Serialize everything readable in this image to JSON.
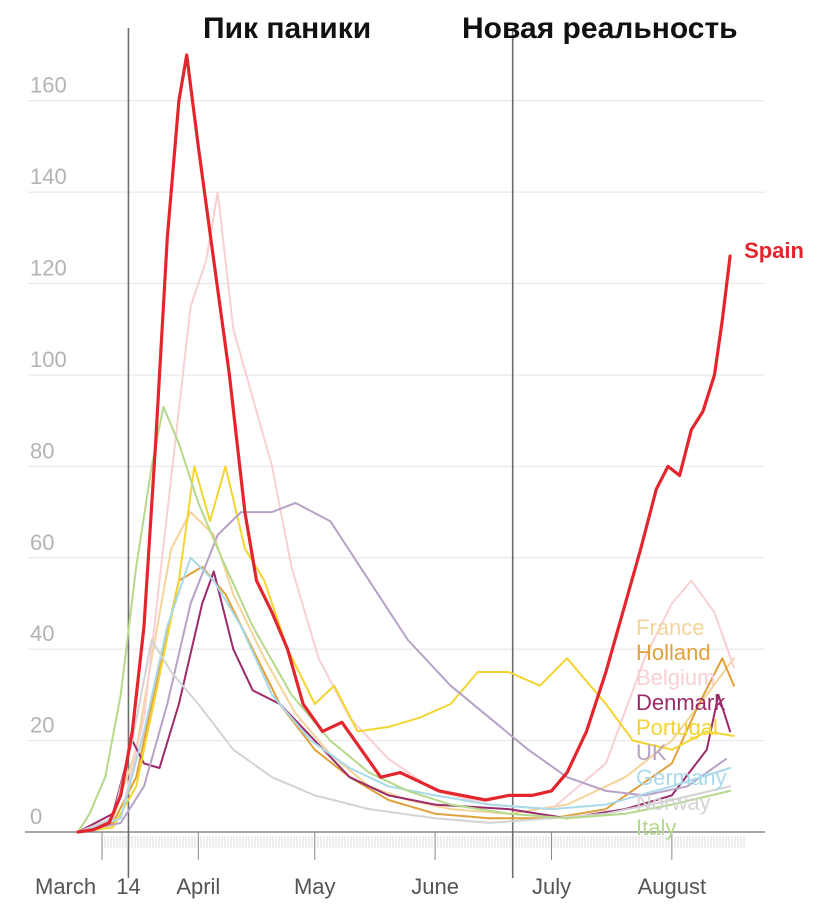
{
  "chart_data": {
    "type": "line",
    "title": "",
    "xlabel": "",
    "ylabel": "",
    "ylim": [
      0,
      170
    ],
    "yticks": [
      0,
      20,
      40,
      60,
      80,
      100,
      120,
      140,
      160
    ],
    "x_range": [
      "2020-03-01",
      "2020-08-25"
    ],
    "x_tick_labels": [
      {
        "date": "2020-03-01",
        "label": "March"
      },
      {
        "date": "2020-03-14",
        "label": "14"
      },
      {
        "date": "2020-04-01",
        "label": "April"
      },
      {
        "date": "2020-05-01",
        "label": "May"
      },
      {
        "date": "2020-06-01",
        "label": "June"
      },
      {
        "date": "2020-07-01",
        "label": "July"
      },
      {
        "date": "2020-08-01",
        "label": "August"
      }
    ],
    "grid": true,
    "phase_dividers": [
      {
        "date": "2020-03-14",
        "label": "Пик паники"
      },
      {
        "date": "2020-06-21",
        "label": "Новая реальность"
      }
    ],
    "series": [
      {
        "name": "Spain",
        "color": "#e3262d",
        "emphasis": true,
        "points": [
          [
            "2020-03-01",
            0
          ],
          [
            "2020-03-05",
            0.5
          ],
          [
            "2020-03-09",
            2
          ],
          [
            "2020-03-12",
            8
          ],
          [
            "2020-03-15",
            22
          ],
          [
            "2020-03-18",
            45
          ],
          [
            "2020-03-21",
            85
          ],
          [
            "2020-03-24",
            130
          ],
          [
            "2020-03-27",
            160
          ],
          [
            "2020-03-29",
            170
          ],
          [
            "2020-04-01",
            150
          ],
          [
            "2020-04-05",
            125
          ],
          [
            "2020-04-09",
            100
          ],
          [
            "2020-04-13",
            70
          ],
          [
            "2020-04-16",
            55
          ],
          [
            "2020-04-20",
            48
          ],
          [
            "2020-04-24",
            40
          ],
          [
            "2020-04-28",
            28
          ],
          [
            "2020-05-03",
            22
          ],
          [
            "2020-05-08",
            24
          ],
          [
            "2020-05-13",
            18
          ],
          [
            "2020-05-18",
            12
          ],
          [
            "2020-05-23",
            13
          ],
          [
            "2020-05-28",
            11
          ],
          [
            "2020-06-02",
            9
          ],
          [
            "2020-06-08",
            8
          ],
          [
            "2020-06-14",
            7
          ],
          [
            "2020-06-20",
            8
          ],
          [
            "2020-06-26",
            8
          ],
          [
            "2020-07-01",
            9
          ],
          [
            "2020-07-05",
            13
          ],
          [
            "2020-07-10",
            22
          ],
          [
            "2020-07-15",
            35
          ],
          [
            "2020-07-20",
            50
          ],
          [
            "2020-07-24",
            62
          ],
          [
            "2020-07-28",
            75
          ],
          [
            "2020-07-31",
            80
          ],
          [
            "2020-08-03",
            78
          ],
          [
            "2020-08-06",
            88
          ],
          [
            "2020-08-09",
            92
          ],
          [
            "2020-08-12",
            100
          ],
          [
            "2020-08-14",
            112
          ],
          [
            "2020-08-16",
            126
          ]
        ]
      },
      {
        "name": "France",
        "color": "#f5d49a",
        "points": [
          [
            "2020-03-01",
            0
          ],
          [
            "2020-03-10",
            3
          ],
          [
            "2020-03-16",
            18
          ],
          [
            "2020-03-20",
            38
          ],
          [
            "2020-03-25",
            62
          ],
          [
            "2020-03-30",
            70
          ],
          [
            "2020-04-05",
            65
          ],
          [
            "2020-04-10",
            52
          ],
          [
            "2020-04-18",
            38
          ],
          [
            "2020-04-26",
            26
          ],
          [
            "2020-05-05",
            17
          ],
          [
            "2020-05-15",
            10
          ],
          [
            "2020-05-25",
            7
          ],
          [
            "2020-06-05",
            5
          ],
          [
            "2020-06-20",
            4
          ],
          [
            "2020-07-05",
            6
          ],
          [
            "2020-07-20",
            12
          ],
          [
            "2020-08-01",
            20
          ],
          [
            "2020-08-10",
            30
          ],
          [
            "2020-08-17",
            38
          ]
        ]
      },
      {
        "name": "Holland",
        "color": "#e0a13c",
        "points": [
          [
            "2020-03-01",
            0
          ],
          [
            "2020-03-10",
            2
          ],
          [
            "2020-03-16",
            12
          ],
          [
            "2020-03-21",
            32
          ],
          [
            "2020-03-27",
            55
          ],
          [
            "2020-04-02",
            58
          ],
          [
            "2020-04-08",
            52
          ],
          [
            "2020-04-15",
            40
          ],
          [
            "2020-04-22",
            28
          ],
          [
            "2020-05-01",
            18
          ],
          [
            "2020-05-10",
            12
          ],
          [
            "2020-05-20",
            7
          ],
          [
            "2020-06-01",
            4
          ],
          [
            "2020-06-15",
            3
          ],
          [
            "2020-07-01",
            3
          ],
          [
            "2020-07-15",
            5
          ],
          [
            "2020-08-01",
            15
          ],
          [
            "2020-08-08",
            28
          ],
          [
            "2020-08-14",
            38
          ],
          [
            "2020-08-17",
            32
          ]
        ]
      },
      {
        "name": "Belgium",
        "color": "#f8d0d3",
        "points": [
          [
            "2020-03-01",
            0
          ],
          [
            "2020-03-12",
            3
          ],
          [
            "2020-03-18",
            25
          ],
          [
            "2020-03-24",
            70
          ],
          [
            "2020-03-30",
            115
          ],
          [
            "2020-04-03",
            125
          ],
          [
            "2020-04-06",
            140
          ],
          [
            "2020-04-10",
            110
          ],
          [
            "2020-04-15",
            95
          ],
          [
            "2020-04-20",
            80
          ],
          [
            "2020-04-25",
            58
          ],
          [
            "2020-05-02",
            38
          ],
          [
            "2020-05-10",
            25
          ],
          [
            "2020-05-20",
            16
          ],
          [
            "2020-06-01",
            9
          ],
          [
            "2020-06-15",
            6
          ],
          [
            "2020-07-01",
            5
          ],
          [
            "2020-07-15",
            15
          ],
          [
            "2020-07-25",
            38
          ],
          [
            "2020-08-01",
            50
          ],
          [
            "2020-08-06",
            55
          ],
          [
            "2020-08-12",
            48
          ],
          [
            "2020-08-17",
            36
          ]
        ]
      },
      {
        "name": "Denmark",
        "color": "#9c2a6b",
        "points": [
          [
            "2020-03-01",
            0
          ],
          [
            "2020-03-10",
            4
          ],
          [
            "2020-03-15",
            20
          ],
          [
            "2020-03-18",
            15
          ],
          [
            "2020-03-22",
            14
          ],
          [
            "2020-03-27",
            28
          ],
          [
            "2020-04-02",
            50
          ],
          [
            "2020-04-05",
            57
          ],
          [
            "2020-04-10",
            40
          ],
          [
            "2020-04-15",
            31
          ],
          [
            "2020-04-22",
            28
          ],
          [
            "2020-05-01",
            20
          ],
          [
            "2020-05-10",
            12
          ],
          [
            "2020-05-20",
            8
          ],
          [
            "2020-06-01",
            6
          ],
          [
            "2020-06-20",
            5
          ],
          [
            "2020-07-05",
            3
          ],
          [
            "2020-07-20",
            5
          ],
          [
            "2020-08-01",
            8
          ],
          [
            "2020-08-10",
            18
          ],
          [
            "2020-08-13",
            30
          ],
          [
            "2020-08-16",
            22
          ]
        ]
      },
      {
        "name": "Portugal",
        "color": "#f3d531",
        "points": [
          [
            "2020-03-01",
            0
          ],
          [
            "2020-03-10",
            1
          ],
          [
            "2020-03-16",
            10
          ],
          [
            "2020-03-21",
            30
          ],
          [
            "2020-03-27",
            55
          ],
          [
            "2020-03-31",
            80
          ],
          [
            "2020-04-04",
            68
          ],
          [
            "2020-04-08",
            80
          ],
          [
            "2020-04-13",
            62
          ],
          [
            "2020-04-18",
            55
          ],
          [
            "2020-04-24",
            40
          ],
          [
            "2020-05-01",
            28
          ],
          [
            "2020-05-06",
            32
          ],
          [
            "2020-05-12",
            22
          ],
          [
            "2020-05-20",
            23
          ],
          [
            "2020-05-28",
            25
          ],
          [
            "2020-06-05",
            28
          ],
          [
            "2020-06-12",
            35
          ],
          [
            "2020-06-20",
            35
          ],
          [
            "2020-06-28",
            32
          ],
          [
            "2020-07-05",
            38
          ],
          [
            "2020-07-10",
            33
          ],
          [
            "2020-07-15",
            28
          ],
          [
            "2020-07-22",
            20
          ],
          [
            "2020-08-01",
            18
          ],
          [
            "2020-08-10",
            22
          ],
          [
            "2020-08-17",
            21
          ]
        ]
      },
      {
        "name": "UK",
        "color": "#b7a2c6",
        "points": [
          [
            "2020-03-01",
            0
          ],
          [
            "2020-03-12",
            2
          ],
          [
            "2020-03-18",
            10
          ],
          [
            "2020-03-24",
            28
          ],
          [
            "2020-03-30",
            50
          ],
          [
            "2020-04-06",
            65
          ],
          [
            "2020-04-12",
            70
          ],
          [
            "2020-04-20",
            70
          ],
          [
            "2020-04-26",
            72
          ],
          [
            "2020-05-05",
            68
          ],
          [
            "2020-05-15",
            55
          ],
          [
            "2020-05-25",
            42
          ],
          [
            "2020-06-05",
            32
          ],
          [
            "2020-06-15",
            25
          ],
          [
            "2020-06-25",
            18
          ],
          [
            "2020-07-05",
            12
          ],
          [
            "2020-07-15",
            9
          ],
          [
            "2020-07-25",
            8
          ],
          [
            "2020-08-05",
            10
          ],
          [
            "2020-08-15",
            16
          ]
        ]
      },
      {
        "name": "Germany",
        "color": "#a9daea",
        "points": [
          [
            "2020-03-01",
            0
          ],
          [
            "2020-03-12",
            3
          ],
          [
            "2020-03-18",
            22
          ],
          [
            "2020-03-24",
            45
          ],
          [
            "2020-03-30",
            60
          ],
          [
            "2020-04-05",
            55
          ],
          [
            "2020-04-12",
            45
          ],
          [
            "2020-04-20",
            30
          ],
          [
            "2020-04-30",
            20
          ],
          [
            "2020-05-10",
            14
          ],
          [
            "2020-05-20",
            10
          ],
          [
            "2020-06-01",
            8
          ],
          [
            "2020-06-15",
            6
          ],
          [
            "2020-07-01",
            5
          ],
          [
            "2020-07-15",
            6
          ],
          [
            "2020-08-01",
            10
          ],
          [
            "2020-08-16",
            14
          ]
        ]
      },
      {
        "name": "Norway",
        "color": "#d3d3d3",
        "points": [
          [
            "2020-03-01",
            0
          ],
          [
            "2020-03-10",
            3
          ],
          [
            "2020-03-15",
            20
          ],
          [
            "2020-03-20",
            42
          ],
          [
            "2020-03-25",
            35
          ],
          [
            "2020-04-01",
            28
          ],
          [
            "2020-04-10",
            18
          ],
          [
            "2020-04-20",
            12
          ],
          [
            "2020-05-01",
            8
          ],
          [
            "2020-05-15",
            5
          ],
          [
            "2020-06-01",
            3
          ],
          [
            "2020-06-15",
            2
          ],
          [
            "2020-07-01",
            3
          ],
          [
            "2020-07-15",
            4
          ],
          [
            "2020-08-01",
            7
          ],
          [
            "2020-08-16",
            10
          ]
        ]
      },
      {
        "name": "Italy",
        "color": "#b5d98a",
        "points": [
          [
            "2020-03-01",
            0
          ],
          [
            "2020-03-04",
            4
          ],
          [
            "2020-03-08",
            12
          ],
          [
            "2020-03-12",
            30
          ],
          [
            "2020-03-16",
            58
          ],
          [
            "2020-03-20",
            80
          ],
          [
            "2020-03-23",
            93
          ],
          [
            "2020-03-27",
            85
          ],
          [
            "2020-04-01",
            72
          ],
          [
            "2020-04-07",
            60
          ],
          [
            "2020-04-15",
            45
          ],
          [
            "2020-04-25",
            30
          ],
          [
            "2020-05-05",
            20
          ],
          [
            "2020-05-15",
            13
          ],
          [
            "2020-05-25",
            9
          ],
          [
            "2020-06-05",
            6
          ],
          [
            "2020-06-20",
            4
          ],
          [
            "2020-07-05",
            3
          ],
          [
            "2020-07-20",
            4
          ],
          [
            "2020-08-01",
            6
          ],
          [
            "2020-08-16",
            9
          ]
        ]
      }
    ]
  }
}
